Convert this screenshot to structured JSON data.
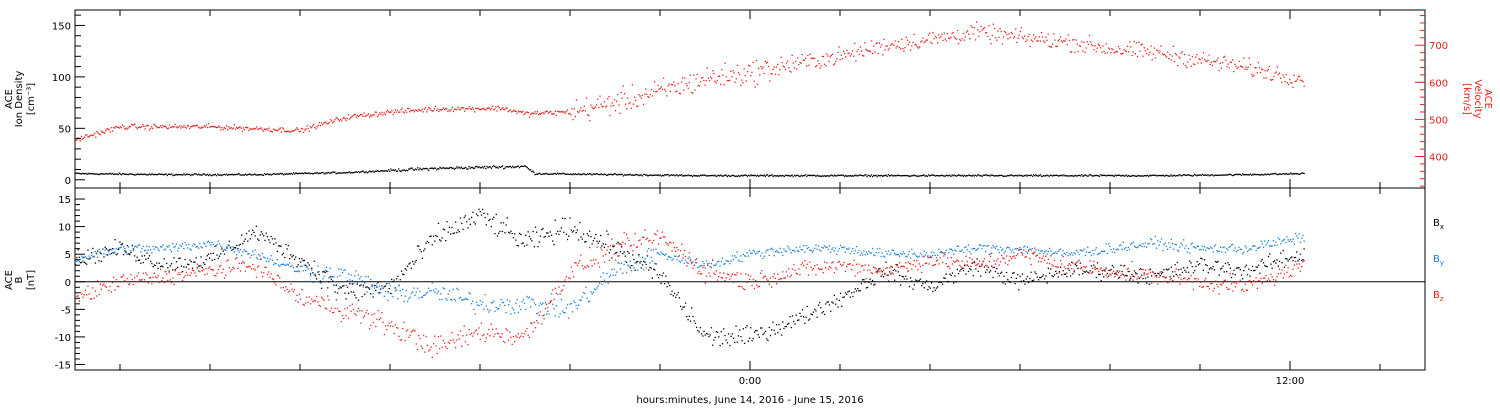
{
  "colors": {
    "density": "#000000",
    "velocity": "#e8201e",
    "bx": "#000000",
    "by": "#1a7fd4",
    "bz": "#e8201e",
    "axis": "#000000"
  },
  "xaxis": {
    "label": "hours:minutes, June 14, 2016 - June 15, 2016",
    "range_hours": [
      -15,
      15
    ],
    "major_ticks": [
      {
        "h": 0,
        "label": "0:00"
      },
      {
        "h": 12,
        "label": "12:00"
      }
    ],
    "minor_step_hours": 2,
    "data_end_hours": 12.3
  },
  "chart_data": [
    {
      "type": "scatter",
      "panel": "top",
      "ylabel_left": [
        "ACE",
        "Ion Density"
      ],
      "yunit_left": "[cm⁻³]",
      "ylabel_right": [
        "ACE",
        "Velocity"
      ],
      "yunit_right": "[km/s]",
      "ylim_left": [
        -8,
        165
      ],
      "yticks_left": [
        0,
        50,
        100,
        150
      ],
      "ylim_right": [
        315,
        795
      ],
      "yticks_right": [
        400,
        500,
        600,
        700
      ],
      "grid": false,
      "series": [
        {
          "key": "density",
          "axis": "left",
          "x": [
            -15,
            -13,
            -11,
            -9,
            -7,
            -6,
            -5,
            -4.8,
            -3,
            -1,
            1,
            3,
            5,
            7,
            9,
            11,
            12.3
          ],
          "y": [
            6,
            5,
            5,
            7,
            11,
            12,
            13,
            6,
            5,
            4,
            4,
            4,
            4,
            4,
            4,
            5,
            6
          ]
        },
        {
          "key": "velocity",
          "axis": "right",
          "x": [
            -15,
            -14,
            -12,
            -10,
            -9,
            -8,
            -7,
            -5.5,
            -5,
            -4,
            -3,
            -2,
            -1,
            0,
            1,
            2,
            3,
            4,
            5,
            6,
            7,
            8,
            9,
            10,
            11,
            12,
            12.3
          ],
          "y": [
            445,
            480,
            480,
            470,
            505,
            520,
            528,
            530,
            515,
            520,
            545,
            575,
            610,
            625,
            650,
            670,
            700,
            715,
            735,
            720,
            710,
            690,
            680,
            660,
            640,
            615,
            610
          ]
        }
      ]
    },
    {
      "type": "scatter",
      "panel": "bottom",
      "ylabel": [
        "ACE",
        "B"
      ],
      "yunit": "[nT]",
      "ylim": [
        -16,
        17
      ],
      "yticks": [
        -15,
        -10,
        -5,
        0,
        5,
        10,
        15
      ],
      "zero_line": true,
      "legend_position": "right",
      "legend": [
        {
          "key": "bx",
          "base": "B",
          "sub": "x"
        },
        {
          "key": "by",
          "base": "B",
          "sub": "y"
        },
        {
          "key": "bz",
          "base": "B",
          "sub": "z"
        }
      ],
      "series": [
        {
          "key": "bx",
          "x": [
            -15,
            -14,
            -13,
            -12,
            -11,
            -10,
            -9,
            -8,
            -7,
            -6,
            -5,
            -4,
            -3,
            -2,
            -1,
            0,
            1,
            2,
            3,
            4,
            5,
            6,
            7,
            8,
            9,
            10,
            11,
            12.3
          ],
          "y": [
            4,
            6,
            3,
            4,
            9,
            4,
            -2,
            -1,
            8,
            12,
            7,
            10,
            6,
            1,
            -10,
            -10,
            -7,
            -3,
            2,
            -1,
            3,
            0,
            2,
            2,
            1,
            3,
            2,
            5
          ]
        },
        {
          "key": "by",
          "x": [
            -15,
            -14,
            -13,
            -12,
            -11,
            -10,
            -9,
            -8,
            -7,
            -6,
            -5,
            -4,
            -3,
            -2,
            -1,
            0,
            1,
            2,
            3,
            4,
            5,
            6,
            7,
            8,
            9,
            10,
            11,
            12.3
          ],
          "y": [
            4,
            6,
            6,
            7,
            5,
            2,
            1,
            -2,
            -2,
            -4,
            -4,
            -5,
            2,
            5,
            3,
            5,
            6,
            6,
            5,
            5,
            6,
            6,
            5,
            6,
            7,
            6,
            6,
            8
          ]
        },
        {
          "key": "bz",
          "x": [
            -15,
            -14,
            -13,
            -12,
            -11,
            -10,
            -9,
            -8,
            -7,
            -6,
            -5,
            -4,
            -3,
            -2,
            -1,
            0,
            1,
            2,
            3,
            4,
            5,
            6,
            7,
            8,
            9,
            10,
            11,
            12.3
          ],
          "y": [
            -3,
            0,
            1,
            2,
            3,
            -3,
            -5,
            -8,
            -12,
            -9,
            -10,
            2,
            6,
            8,
            2,
            0,
            2,
            3,
            2,
            4,
            3,
            5,
            3,
            2,
            1,
            0,
            -1,
            3
          ]
        }
      ]
    }
  ]
}
